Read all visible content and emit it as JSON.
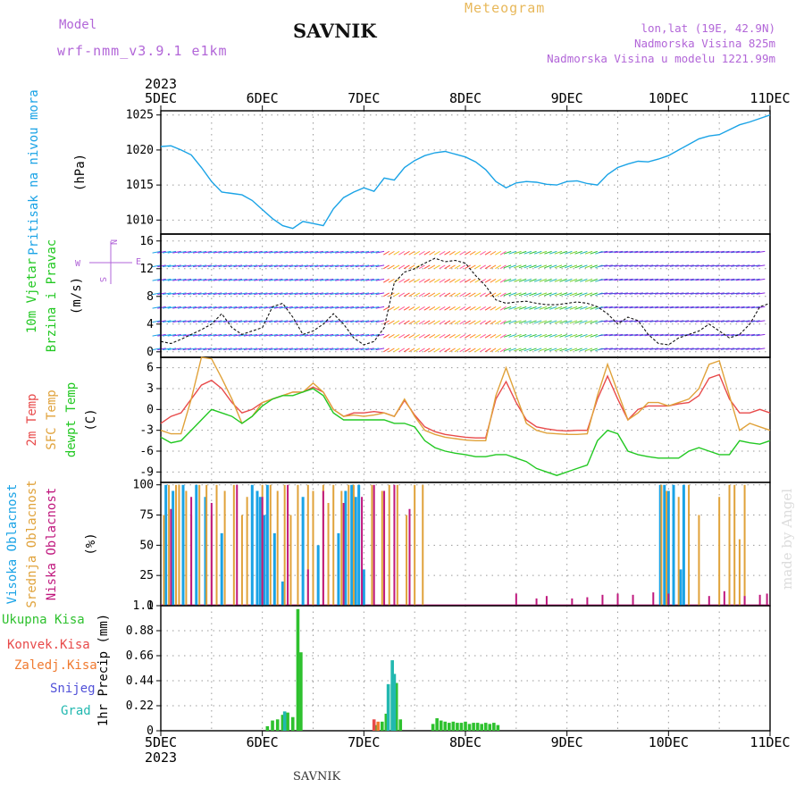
{
  "header": {
    "model_label": "Model",
    "model_name": "wrf-nmm_v3.9.1 e1km",
    "station": "SAVNIK",
    "product": "Meteogram",
    "coords": "lon,lat (19E, 42.9N)",
    "elevation": "Nadmorska Visina 825m",
    "model_elevation": "Nadmorska Visina u modelu 1221.99m"
  },
  "footer": {
    "station": "SAVNIK",
    "credit": "made by Angel"
  },
  "colors": {
    "pressure": "#1aa3e6",
    "temp2m": "#e84a4a",
    "sfc_temp": "#e0a23a",
    "dewpoint": "#22c822",
    "cloud_high": "#1aa3e6",
    "cloud_mid": "#e0a23a",
    "cloud_low": "#c0187e",
    "rain_total": "#2ec12e",
    "rain_conv": "#e84a4a",
    "freezing": "#f07a30",
    "snow": "#5050d8",
    "hail": "#22b8b0"
  },
  "chart_data": [
    {
      "type": "line",
      "name": "pressure",
      "ylabel_lines": [
        "Pritisak na nivou mora",
        "(hPa)"
      ],
      "x_days": [
        5,
        5.1,
        5.2,
        5.3,
        5.4,
        5.5,
        5.6,
        5.7,
        5.8,
        5.9,
        6.0,
        6.1,
        6.2,
        6.3,
        6.4,
        6.5,
        6.6,
        6.7,
        6.8,
        6.9,
        7.0,
        7.1,
        7.2,
        7.3,
        7.4,
        7.5,
        7.6,
        7.7,
        7.8,
        7.9,
        8.0,
        8.1,
        8.2,
        8.3,
        8.4,
        8.5,
        8.6,
        8.7,
        8.8,
        8.9,
        9.0,
        9.1,
        9.2,
        9.3,
        9.4,
        9.5,
        9.6,
        9.7,
        9.8,
        9.9,
        10.0,
        10.1,
        10.2,
        10.3,
        10.4,
        10.5,
        10.6,
        10.7,
        10.8,
        10.9,
        11.0
      ],
      "values": [
        1020.5,
        1020.6,
        1020.0,
        1019.3,
        1017.5,
        1015.5,
        1014.0,
        1013.8,
        1013.6,
        1012.8,
        1011.5,
        1010.2,
        1009.2,
        1008.8,
        1009.8,
        1009.5,
        1009.2,
        1011.6,
        1013.2,
        1014.0,
        1014.6,
        1014.1,
        1016.0,
        1015.7,
        1017.5,
        1018.5,
        1019.2,
        1019.6,
        1019.8,
        1019.4,
        1019.0,
        1018.3,
        1017.2,
        1015.5,
        1014.6,
        1015.3,
        1015.5,
        1015.4,
        1015.1,
        1015.0,
        1015.5,
        1015.6,
        1015.2,
        1015.0,
        1016.5,
        1017.5,
        1018.0,
        1018.4,
        1018.3,
        1018.7,
        1019.2,
        1020.0,
        1020.8,
        1021.6,
        1022.0,
        1022.2,
        1022.9,
        1023.6,
        1024.0,
        1024.5,
        1025.0
      ],
      "ylim": [
        1008,
        1025.6
      ],
      "yticks": [
        1010,
        1015,
        1020,
        1025
      ]
    },
    {
      "type": "line",
      "name": "wind",
      "ylabel_lines": [
        "10m Vjetar",
        "Brzina i Pravac",
        "(m/s)"
      ],
      "compass_labels": [
        "N",
        "E",
        "S",
        "W"
      ],
      "x_days": [
        5,
        5.1,
        5.2,
        5.3,
        5.4,
        5.5,
        5.6,
        5.7,
        5.8,
        5.9,
        6.0,
        6.1,
        6.2,
        6.3,
        6.4,
        6.5,
        6.6,
        6.7,
        6.8,
        6.9,
        7.0,
        7.1,
        7.2,
        7.3,
        7.4,
        7.5,
        7.6,
        7.7,
        7.8,
        7.9,
        8.0,
        8.1,
        8.2,
        8.3,
        8.4,
        8.5,
        8.6,
        8.7,
        8.8,
        8.9,
        9.0,
        9.1,
        9.2,
        9.3,
        9.4,
        9.5,
        9.6,
        9.7,
        9.8,
        9.9,
        10.0,
        10.1,
        10.2,
        10.3,
        10.4,
        10.5,
        10.6,
        10.7,
        10.8,
        10.9,
        11.0
      ],
      "values": [
        1.5,
        1.2,
        1.8,
        2.5,
        3.2,
        4.0,
        5.5,
        3.5,
        2.5,
        3.0,
        3.5,
        6.5,
        7.0,
        5.0,
        2.5,
        3.0,
        4.0,
        5.5,
        4.0,
        2.0,
        1.0,
        1.5,
        3.5,
        10.0,
        11.5,
        12.0,
        12.8,
        13.5,
        13.0,
        13.2,
        12.8,
        11.0,
        9.5,
        7.5,
        7.0,
        7.2,
        7.3,
        7.0,
        6.8,
        6.8,
        7.0,
        7.2,
        7.0,
        6.5,
        5.5,
        4.0,
        5.0,
        4.5,
        2.5,
        1.2,
        1.0,
        2.0,
        2.5,
        3.0,
        4.0,
        3.0,
        2.0,
        2.5,
        4.0,
        6.5,
        7.0
      ],
      "ylim": [
        -0.8,
        17
      ],
      "yticks": [
        0,
        4,
        8,
        12,
        16
      ]
    },
    {
      "type": "line",
      "name": "temperature",
      "ylabel_lines": [
        "2m Temp",
        "SFC Temp",
        "dewpt Temp",
        "(C)"
      ],
      "x_days": [
        5,
        5.1,
        5.2,
        5.3,
        5.4,
        5.5,
        5.6,
        5.7,
        5.8,
        5.9,
        6.0,
        6.1,
        6.2,
        6.3,
        6.4,
        6.5,
        6.6,
        6.7,
        6.8,
        6.9,
        7.0,
        7.1,
        7.2,
        7.3,
        7.4,
        7.5,
        7.6,
        7.7,
        7.8,
        7.9,
        8.0,
        8.1,
        8.2,
        8.3,
        8.4,
        8.5,
        8.6,
        8.7,
        8.8,
        8.9,
        9.0,
        9.1,
        9.2,
        9.3,
        9.4,
        9.5,
        9.6,
        9.7,
        9.8,
        9.9,
        10.0,
        10.1,
        10.2,
        10.3,
        10.4,
        10.5,
        10.6,
        10.7,
        10.8,
        10.9,
        11.0
      ],
      "series": [
        {
          "key": "temp2m",
          "label": "2m Temp",
          "values": [
            -2.0,
            -1.0,
            -0.5,
            1.5,
            3.5,
            4.2,
            3.0,
            1.0,
            -0.5,
            0.0,
            1.0,
            1.5,
            2.0,
            2.5,
            2.5,
            3.2,
            2.5,
            0.0,
            -1.0,
            -0.5,
            -0.5,
            -0.3,
            -0.5,
            -1.0,
            1.3,
            -0.8,
            -2.5,
            -3.2,
            -3.6,
            -3.8,
            -4.0,
            -4.1,
            -4.1,
            1.5,
            4.0,
            1.0,
            -1.5,
            -2.5,
            -2.8,
            -3.0,
            -3.1,
            -3.0,
            -3.0,
            1.5,
            4.8,
            1.5,
            -1.5,
            0.0,
            0.5,
            0.5,
            0.5,
            0.8,
            1.0,
            2.0,
            4.5,
            5.0,
            1.5,
            -0.5,
            -0.5,
            0.0,
            -0.5
          ]
        },
        {
          "key": "sfc_temp",
          "label": "SFC Temp",
          "values": [
            -3.0,
            -3.5,
            -3.5,
            1.5,
            7.5,
            7.3,
            4.5,
            1.5,
            -2.0,
            -1.0,
            1.0,
            1.5,
            2.0,
            2.5,
            2.5,
            3.8,
            2.5,
            0.0,
            -1.0,
            -0.8,
            -1.0,
            -0.8,
            -0.5,
            -1.0,
            1.5,
            -1.0,
            -3.0,
            -3.6,
            -4.0,
            -4.2,
            -4.4,
            -4.5,
            -4.5,
            2.0,
            6.0,
            2.0,
            -2.0,
            -3.0,
            -3.4,
            -3.5,
            -3.6,
            -3.6,
            -3.5,
            2.0,
            6.5,
            2.5,
            -1.5,
            -0.5,
            1.0,
            1.0,
            0.5,
            1.0,
            1.5,
            3.0,
            6.5,
            7.0,
            2.0,
            -3.0,
            -2.0,
            -2.5,
            -3.0
          ]
        },
        {
          "key": "dewpoint",
          "label": "dewpt Temp",
          "values": [
            -4.0,
            -4.8,
            -4.5,
            -3.0,
            -1.5,
            0.0,
            -0.5,
            -1.0,
            -2.0,
            -1.0,
            0.5,
            1.5,
            2.0,
            2.0,
            2.5,
            3.0,
            2.0,
            -0.5,
            -1.5,
            -1.5,
            -1.5,
            -1.5,
            -1.5,
            -2.0,
            -2.0,
            -2.5,
            -4.5,
            -5.5,
            -6.0,
            -6.3,
            -6.5,
            -6.8,
            -6.8,
            -6.5,
            -6.5,
            -7.0,
            -7.5,
            -8.5,
            -9.0,
            -9.5,
            -9.0,
            -8.5,
            -8.0,
            -4.5,
            -3.0,
            -3.5,
            -6.0,
            -6.5,
            -6.8,
            -7.0,
            -7.0,
            -7.0,
            -6.0,
            -5.5,
            -6.0,
            -6.5,
            -6.5,
            -4.5,
            -4.8,
            -5.0,
            -4.5
          ]
        }
      ],
      "ylim": [
        -10.5,
        7.5
      ],
      "yticks": [
        -9,
        -6,
        -3,
        0,
        3,
        6
      ]
    },
    {
      "type": "bar",
      "name": "cloudiness",
      "ylabel_lines": [
        "Visoka Oblacnost",
        "Srednja Oblacnost",
        "Niska Oblacnost",
        "(%)"
      ],
      "ylim": [
        0,
        102
      ],
      "yticks": [
        0,
        25,
        50,
        75,
        100
      ],
      "series": [
        {
          "key": "cloud_high",
          "label": "Visoka Oblacnost",
          "x_days": [
            5.05,
            5.12,
            5.22,
            5.35,
            5.44,
            5.6,
            5.9,
            5.95,
            5.98,
            6.02,
            6.05,
            6.12,
            6.2,
            6.4,
            6.55,
            6.75,
            6.82,
            6.88,
            6.92,
            6.95,
            7.0,
            9.92,
            9.96,
            10.0,
            10.05,
            10.12,
            10.15
          ],
          "values": [
            100,
            95,
            100,
            100,
            90,
            60,
            100,
            95,
            90,
            75,
            100,
            60,
            20,
            90,
            50,
            60,
            95,
            100,
            90,
            100,
            30,
            100,
            100,
            95,
            100,
            30,
            100
          ]
        },
        {
          "key": "cloud_mid",
          "label": "Srednja Oblacnost",
          "x_days": [
            5.03,
            5.08,
            5.15,
            5.18,
            5.25,
            5.3,
            5.38,
            5.45,
            5.5,
            5.55,
            5.63,
            5.72,
            5.8,
            5.85,
            6.0,
            6.08,
            6.15,
            6.22,
            6.28,
            6.35,
            6.45,
            6.5,
            6.6,
            6.65,
            6.7,
            6.78,
            6.85,
            6.9,
            7.08,
            7.18,
            7.25,
            7.33,
            7.42,
            7.5,
            7.58,
            9.93,
            9.98,
            10.1,
            10.2,
            10.3,
            10.5,
            10.6,
            10.65,
            10.7,
            10.75
          ],
          "values": [
            75,
            100,
            100,
            100,
            95,
            75,
            100,
            100,
            75,
            100,
            95,
            100,
            75,
            90,
            100,
            100,
            95,
            100,
            75,
            100,
            100,
            95,
            100,
            85,
            100,
            95,
            100,
            100,
            100,
            95,
            100,
            100,
            75,
            100,
            100,
            100,
            95,
            90,
            100,
            75,
            90,
            100,
            100,
            55,
            100
          ]
        },
        {
          "key": "cloud_low",
          "label": "Niska Oblacnost",
          "x_days": [
            5.1,
            5.3,
            5.5,
            5.75,
            6.0,
            6.25,
            6.45,
            6.6,
            6.8,
            6.98,
            7.1,
            7.2,
            7.3,
            7.45,
            8.5,
            8.7,
            8.8,
            9.05,
            9.2,
            9.35,
            9.5,
            9.65,
            9.85,
            10.0,
            10.4,
            10.55,
            10.75,
            10.9,
            10.97
          ],
          "values": [
            80,
            90,
            85,
            100,
            90,
            100,
            30,
            95,
            85,
            90,
            100,
            95,
            100,
            80,
            10,
            6,
            8,
            6,
            7,
            9,
            10,
            9,
            11,
            10,
            8,
            12,
            8,
            9,
            10
          ]
        }
      ]
    },
    {
      "type": "bar",
      "name": "precipitation",
      "ylabel_lines": [
        "1hr Precip (mm)"
      ],
      "legend": [
        "Ukupna Kisa",
        "Konvek.Kisa",
        "Zaledj.Kisa",
        "Snijeg",
        "Grad"
      ],
      "ylim": [
        0,
        1.1
      ],
      "yticks": [
        0,
        0.22,
        0.44,
        0.66,
        0.88,
        1.1
      ],
      "series": [
        {
          "key": "rain_total",
          "label": "Ukupna Kisa",
          "x_days": [
            6.05,
            6.1,
            6.15,
            6.2,
            6.25,
            6.3,
            6.35,
            6.38,
            7.12,
            7.18,
            7.22,
            7.28,
            7.32,
            7.36,
            7.68,
            7.72,
            7.76,
            7.8,
            7.84,
            7.88,
            7.92,
            7.96,
            8.0,
            8.04,
            8.08,
            8.12,
            8.16,
            8.2,
            8.24,
            8.28,
            8.32
          ],
          "values": [
            0.04,
            0.09,
            0.1,
            0.14,
            0.16,
            0.12,
            1.07,
            0.69,
            0.05,
            0.08,
            0.15,
            0.41,
            0.42,
            0.1,
            0.06,
            0.11,
            0.09,
            0.08,
            0.07,
            0.08,
            0.07,
            0.07,
            0.08,
            0.06,
            0.07,
            0.07,
            0.06,
            0.07,
            0.06,
            0.07,
            0.05
          ]
        },
        {
          "key": "rain_conv",
          "label": "Konvek.Kisa",
          "x_days": [
            7.1
          ],
          "values": [
            0.1
          ]
        },
        {
          "key": "freezing",
          "label": "Zaledj.Kisa",
          "x_days": [
            7.14
          ],
          "values": [
            0.08
          ]
        },
        {
          "key": "hail",
          "label": "Grad",
          "x_days": [
            6.22,
            7.24,
            7.28,
            7.3
          ],
          "values": [
            0.17,
            0.41,
            0.62,
            0.5
          ]
        }
      ]
    }
  ],
  "axis": {
    "top_year": "2023",
    "bottom_year": "2023",
    "day_labels": [
      "5DEC",
      "6DEC",
      "7DEC",
      "8DEC",
      "9DEC",
      "10DEC",
      "11DEC"
    ],
    "day_values": [
      5,
      6,
      7,
      8,
      9,
      10,
      11
    ]
  }
}
